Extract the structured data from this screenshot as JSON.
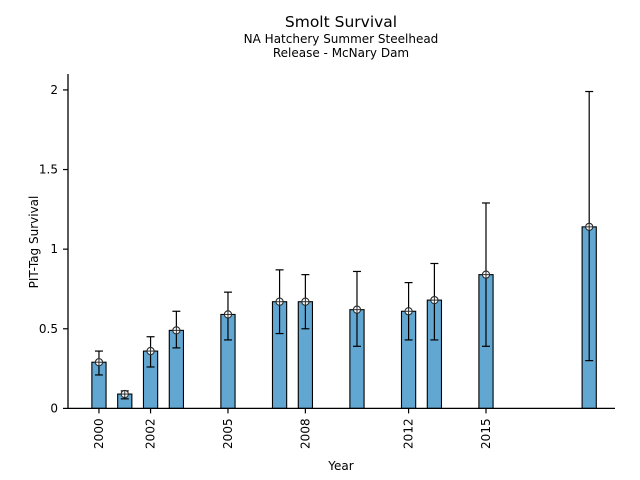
{
  "chart_data": {
    "type": "bar",
    "title": "Smolt Survival",
    "subtitle_lines": [
      "NA Hatchery Summer Steelhead",
      "Release - McNary Dam"
    ],
    "xlabel": "Year",
    "ylabel": "PIT-Tag Survival",
    "categories": [
      2000,
      2001,
      2002,
      2003,
      2005,
      2007,
      2008,
      2010,
      2012,
      2013,
      2015,
      2019
    ],
    "values": [
      0.29,
      0.09,
      0.36,
      0.49,
      0.59,
      0.67,
      0.67,
      0.62,
      0.61,
      0.68,
      0.84,
      1.14
    ],
    "error_low": [
      0.21,
      0.06,
      0.26,
      0.38,
      0.43,
      0.47,
      0.5,
      0.39,
      0.43,
      0.43,
      0.39,
      0.3
    ],
    "error_high": [
      0.36,
      0.11,
      0.45,
      0.61,
      0.73,
      0.87,
      0.84,
      0.86,
      0.79,
      0.91,
      1.29,
      1.99
    ],
    "xtick_values": [
      2000,
      2002,
      2005,
      2008,
      2012,
      2015
    ],
    "xtick_labels": [
      "2000",
      "2002",
      "2005",
      "2008",
      "2012",
      "2015"
    ],
    "ytick_values": [
      0,
      0.5,
      1,
      1.5,
      2
    ],
    "ytick_labels": [
      "0",
      "0.5",
      "1",
      "1.5",
      "2"
    ],
    "xlim": [
      1998.8,
      2020.0
    ],
    "ylim": [
      0,
      2.1
    ],
    "bar_width_years": 0.55,
    "grid": "off",
    "legend": "none",
    "marker_style": "circle-plus",
    "colors": {
      "bar_fill": "#61a7d2",
      "bar_edge": "#000000",
      "error_bar": "#000000",
      "marker_edge": "#2b2b2b",
      "marker_fill": "#ffffff",
      "axis": "#000000",
      "text": "#000000",
      "background": "#ffffff"
    }
  }
}
